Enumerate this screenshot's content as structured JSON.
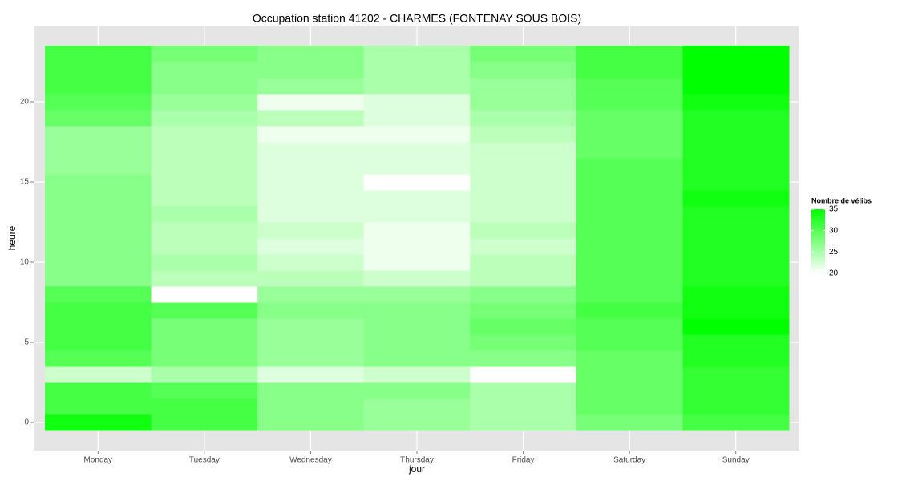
{
  "chart_data": {
    "type": "heatmap",
    "title": "Occupation station 41202 - CHARMES (FONTENAY SOUS BOIS)",
    "x_label": "jour",
    "y_label": "heure",
    "categories": [
      "Monday",
      "Tuesday",
      "Wednesday",
      "Thursday",
      "Friday",
      "Saturday",
      "Sunday"
    ],
    "y": [
      0,
      1,
      2,
      3,
      4,
      5,
      6,
      7,
      8,
      9,
      10,
      11,
      12,
      13,
      14,
      15,
      16,
      17,
      18,
      19,
      20,
      21,
      22,
      23
    ],
    "values": [
      [
        34,
        31,
        31,
        23,
        30,
        31,
        31,
        31,
        30,
        27,
        27,
        27,
        27,
        27,
        27,
        27,
        26,
        26,
        26,
        29,
        30,
        31,
        31,
        31
      ],
      [
        31,
        31,
        30,
        25,
        28,
        28,
        28,
        30,
        20,
        24,
        25,
        24,
        24,
        25,
        24,
        24,
        24,
        24,
        24,
        25,
        26,
        27,
        27,
        28
      ],
      [
        27,
        27,
        27,
        22,
        26,
        26,
        26,
        27,
        26,
        24,
        23,
        22,
        23,
        22,
        22,
        22,
        22,
        22,
        21,
        24,
        21,
        26,
        27,
        27
      ],
      [
        26,
        26,
        27,
        23,
        27,
        27,
        27,
        27,
        26,
        23,
        21,
        21,
        21,
        22,
        22,
        20,
        22,
        22,
        21,
        22,
        22,
        25,
        25,
        25
      ],
      [
        25,
        25,
        25,
        20,
        27,
        28,
        29,
        28,
        27,
        24,
        24,
        23,
        24,
        23,
        23,
        23,
        23,
        23,
        24,
        25,
        26,
        26,
        27,
        28
      ],
      [
        28,
        29,
        29,
        29,
        29,
        30,
        30,
        31,
        30,
        30,
        30,
        30,
        30,
        30,
        30,
        30,
        30,
        29,
        29,
        29,
        30,
        30,
        31,
        31
      ],
      [
        31,
        32,
        32,
        32,
        33,
        33,
        35,
        34,
        34,
        33,
        33,
        33,
        33,
        33,
        34,
        33,
        33,
        33,
        33,
        33,
        34,
        35,
        35,
        35
      ]
    ],
    "ylim": [
      -0.5,
      23.5
    ],
    "yticks": [
      0,
      5,
      10,
      15,
      20
    ],
    "legend_title": "Nombre de vélibs",
    "clim": [
      20,
      35
    ],
    "legend_ticks": [
      20,
      25,
      30,
      35
    ],
    "low_color": "#ffffff",
    "high_color": "#00ff00",
    "grid": true
  }
}
